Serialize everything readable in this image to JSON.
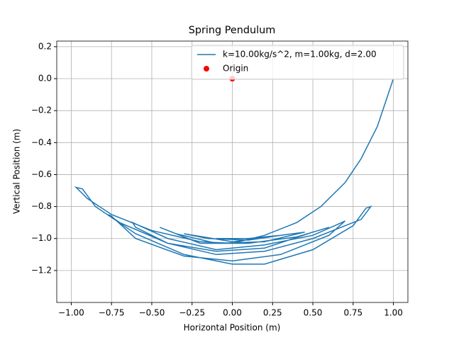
{
  "chart_data": {
    "type": "line",
    "title": "Spring Pendulum",
    "x_label": "Horizontal Position (m)",
    "y_label": "Vertical Position (m)",
    "xlim": [
      -1.09,
      1.09
    ],
    "ylim": [
      -1.4,
      0.235
    ],
    "grid": true,
    "legend": "upper right",
    "xticks": [
      {
        "value": -1,
        "label": "−1.00"
      },
      {
        "value": -0.75,
        "label": "−0.75"
      },
      {
        "value": -0.5,
        "label": "−0.50"
      },
      {
        "value": -0.25,
        "label": "−0.25"
      },
      {
        "value": 0,
        "label": "0.00"
      },
      {
        "value": 0.25,
        "label": "0.25"
      },
      {
        "value": 0.5,
        "label": "0.50"
      },
      {
        "value": 0.75,
        "label": "0.75"
      },
      {
        "value": 1,
        "label": "1.00"
      }
    ],
    "yticks": [
      0.2,
      {
        "value": 0,
        "label": "0.0"
      },
      {
        "value": -0.2,
        "label": "−0.2"
      },
      {
        "value": -0.4,
        "label": "−0.4"
      },
      {
        "value": -0.6,
        "label": "−0.6"
      },
      {
        "value": -0.8,
        "label": "−0.8"
      },
      {
        "value": -1,
        "label": "−1.0"
      },
      {
        "value": -1.2,
        "label": "−1.2"
      }
    ],
    "series": [
      {
        "name": "k=10.00kg/s^2, m=1.00kg, d=2.00",
        "type": "line",
        "color": "#1f77b4",
        "x": [
          1.0,
          0.95,
          0.9,
          0.8,
          0.7,
          0.55,
          0.4,
          0.2,
          0,
          -0.2,
          -0.5,
          -0.75,
          -0.9,
          -0.97,
          -0.93,
          -0.85,
          -0.6,
          -0.3,
          0,
          0.2,
          0.5,
          0.75,
          0.83,
          0.86,
          0.8,
          0.5,
          0.2,
          -0.1,
          -0.4,
          -0.7,
          -0.77,
          -0.75,
          -0.6,
          -0.3,
          0,
          0.3,
          0.6,
          0.7,
          0.68,
          0.5,
          0.2,
          -0.1,
          -0.4,
          -0.62,
          -0.6,
          -0.4,
          -0.1,
          0.2,
          0.5,
          0.6,
          0.4,
          0.1,
          -0.2,
          -0.45,
          -0.35,
          -0.1,
          0.2,
          0.45,
          0.3,
          0,
          -0.3,
          -0.15,
          0.1,
          0.3,
          0.1,
          -0.1,
          0
        ],
        "values": [
          0.0,
          -0.15,
          -0.3,
          -0.5,
          -0.65,
          -0.8,
          -0.9,
          -0.98,
          -1.03,
          -1.02,
          -0.95,
          -0.85,
          -0.75,
          -0.68,
          -0.69,
          -0.8,
          -0.97,
          -1.1,
          -1.16,
          -1.16,
          -1.07,
          -0.92,
          -0.81,
          -0.8,
          -0.88,
          -1.0,
          -1.08,
          -1.1,
          -1.03,
          -0.9,
          -0.85,
          -0.86,
          -1.0,
          -1.11,
          -1.14,
          -1.1,
          -0.98,
          -0.89,
          -0.9,
          -0.98,
          -1.04,
          -1.07,
          -1.0,
          -0.9,
          -0.93,
          -1.03,
          -1.08,
          -1.06,
          -0.96,
          -0.93,
          -0.99,
          -1.03,
          -1.03,
          -0.93,
          -0.97,
          -1.03,
          -1.02,
          -0.96,
          -0.98,
          -1.02,
          -0.97,
          -1.0,
          -1.01,
          -0.98,
          -1.0,
          -1.0,
          -1.0
        ]
      },
      {
        "name": "Origin",
        "type": "scatter",
        "color": "#ff0000",
        "x": [
          0
        ],
        "values": [
          0
        ]
      }
    ]
  }
}
